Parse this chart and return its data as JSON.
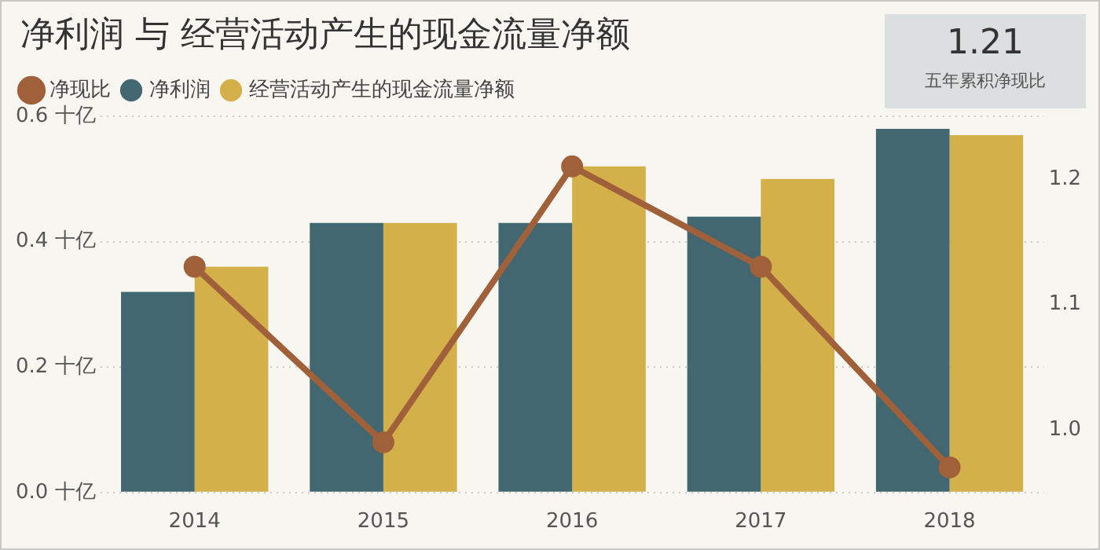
{
  "chart_data": {
    "type": "bar",
    "title": "净利润 与 经营活动产生的现金流量净额",
    "annotations": [
      "1.21",
      "五年累积净现比"
    ],
    "categories": [
      "2014",
      "2015",
      "2016",
      "2017",
      "2018"
    ],
    "series": [
      {
        "name": "净利润",
        "color": "#426771",
        "values": [
          0.32,
          0.43,
          0.43,
          0.44,
          0.58
        ]
      },
      {
        "name": "经营活动产生的现金流量净额",
        "color": "#d4b04a",
        "values": [
          0.36,
          0.43,
          0.52,
          0.5,
          0.57
        ]
      },
      {
        "name": "净现比",
        "type": "line",
        "axis": "y2",
        "color": "#a0603a",
        "values": [
          1.13,
          0.99,
          1.21,
          1.13,
          0.97
        ]
      }
    ],
    "ylim": [
      0,
      0.6
    ],
    "yticks": [
      {
        "value": 0,
        "label": "0.0 十亿"
      },
      {
        "value": 0.2,
        "label": "0.2 十亿"
      },
      {
        "value": 0.4,
        "label": "0.4 十亿"
      },
      {
        "value": 0.6,
        "label": "0.6 十亿"
      }
    ],
    "y2lim": [
      0.95,
      1.25
    ],
    "y2ticks": [
      {
        "value": 1,
        "label": "1.0"
      },
      {
        "value": 1.1,
        "label": "1.1"
      },
      {
        "value": 1.2,
        "label": "1.2"
      }
    ],
    "grid": "y",
    "legend": "top left",
    "marker": "circle",
    "line_style": "solid"
  }
}
